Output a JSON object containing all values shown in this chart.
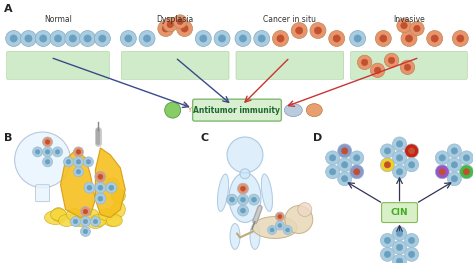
{
  "bg_color": "#ffffff",
  "stage_labels": [
    "Normal",
    "Dysplasia",
    "Cancer in situ",
    "Invasive"
  ],
  "antitumor_label": "Antitumor immunity",
  "cin_label": "CIN",
  "cell_blue": "#a8cce0",
  "cell_orange": "#e8956d",
  "cell_edge": "#9bb8cc",
  "nuc_blue": "#6a9fc0",
  "nuc_orange": "#c05030",
  "stroma_color": "#c8e8c0",
  "stroma_edge": "#a0c890",
  "box_fc": "#d8f0d0",
  "box_ec": "#80b870",
  "arrow_blue": "#3a4a8a",
  "arrow_red": "#cc3333"
}
